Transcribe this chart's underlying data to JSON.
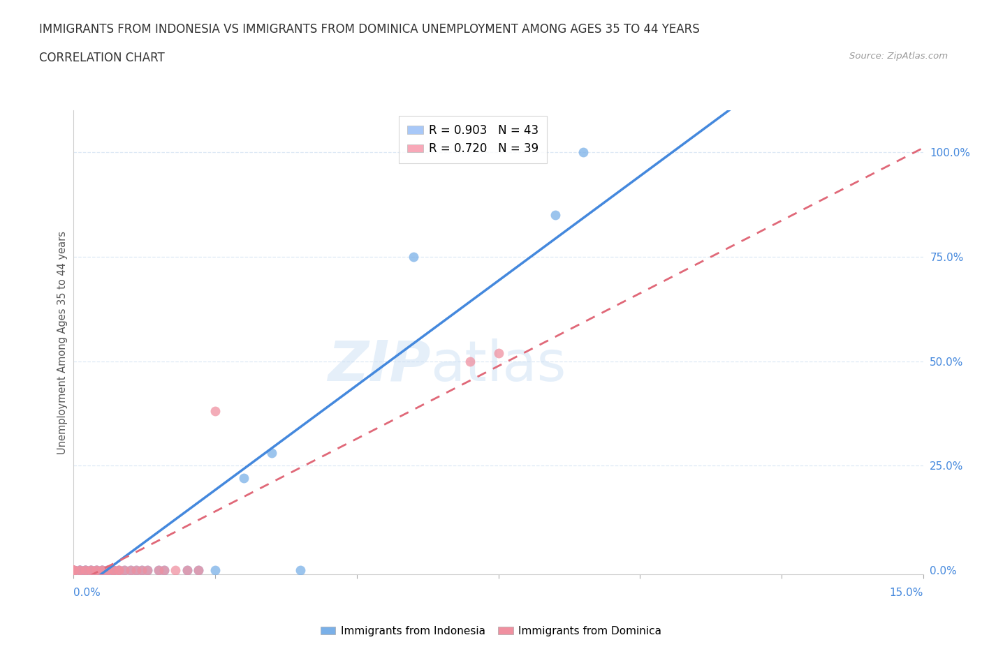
{
  "title_line1": "IMMIGRANTS FROM INDONESIA VS IMMIGRANTS FROM DOMINICA UNEMPLOYMENT AMONG AGES 35 TO 44 YEARS",
  "title_line2": "CORRELATION CHART",
  "source_text": "Source: ZipAtlas.com",
  "ylabel_right_ticks": [
    0.0,
    25.0,
    50.0,
    75.0,
    100.0
  ],
  "watermark_zip": "ZIP",
  "watermark_atlas": "atlas",
  "legend_entries": [
    {
      "label": "R = 0.903   N = 43",
      "color": "#a8c8f8"
    },
    {
      "label": "R = 0.720   N = 39",
      "color": "#f8a8b8"
    }
  ],
  "indonesia": {
    "color": "#7ab0e8",
    "trendline_color": "#4488dd",
    "x": [
      0.0,
      0.0,
      0.0,
      0.0,
      0.0,
      0.0,
      0.0,
      0.0,
      0.0,
      0.0,
      0.001,
      0.001,
      0.001,
      0.002,
      0.002,
      0.002,
      0.003,
      0.003,
      0.004,
      0.004,
      0.005,
      0.005,
      0.006,
      0.006,
      0.007,
      0.007,
      0.008,
      0.009,
      0.01,
      0.011,
      0.012,
      0.013,
      0.015,
      0.016,
      0.02,
      0.022,
      0.025,
      0.03,
      0.035,
      0.04,
      0.06,
      0.085,
      0.09
    ],
    "y": [
      0.0,
      0.0,
      0.0,
      0.0,
      0.0,
      0.0,
      0.0,
      0.0,
      0.0,
      0.0,
      0.0,
      0.0,
      0.0,
      0.0,
      0.0,
      0.0,
      0.0,
      0.0,
      0.0,
      0.0,
      0.0,
      0.0,
      0.0,
      0.0,
      0.0,
      0.0,
      0.0,
      0.0,
      0.0,
      0.0,
      0.0,
      0.0,
      0.0,
      0.0,
      0.0,
      0.0,
      0.0,
      0.22,
      0.28,
      0.0,
      0.75,
      0.85,
      1.0
    ]
  },
  "dominica": {
    "color": "#f090a0",
    "trendline_color": "#e06878",
    "x": [
      0.0,
      0.0,
      0.0,
      0.0,
      0.0,
      0.0,
      0.0,
      0.0,
      0.0,
      0.0,
      0.001,
      0.001,
      0.002,
      0.002,
      0.003,
      0.003,
      0.004,
      0.004,
      0.005,
      0.005,
      0.006,
      0.006,
      0.007,
      0.007,
      0.008,
      0.008,
      0.009,
      0.01,
      0.011,
      0.012,
      0.013,
      0.015,
      0.016,
      0.018,
      0.02,
      0.022,
      0.025,
      0.07,
      0.075
    ],
    "y": [
      0.0,
      0.0,
      0.0,
      0.0,
      0.0,
      0.0,
      0.0,
      0.0,
      0.0,
      0.0,
      0.0,
      0.0,
      0.0,
      0.0,
      0.0,
      0.0,
      0.0,
      0.0,
      0.0,
      0.0,
      0.0,
      0.0,
      0.0,
      0.0,
      0.0,
      0.0,
      0.0,
      0.0,
      0.0,
      0.0,
      0.0,
      0.0,
      0.0,
      0.0,
      0.0,
      0.0,
      0.38,
      0.5,
      0.52
    ]
  },
  "xlim": [
    0.0,
    0.15
  ],
  "ylim": [
    -0.01,
    1.1
  ],
  "background_color": "#ffffff",
  "plot_bg_color": "#ffffff",
  "axis_label_color": "#4488dd",
  "right_axis_color": "#4488dd",
  "grid_color": "#dde8f5",
  "title_color": "#333333"
}
